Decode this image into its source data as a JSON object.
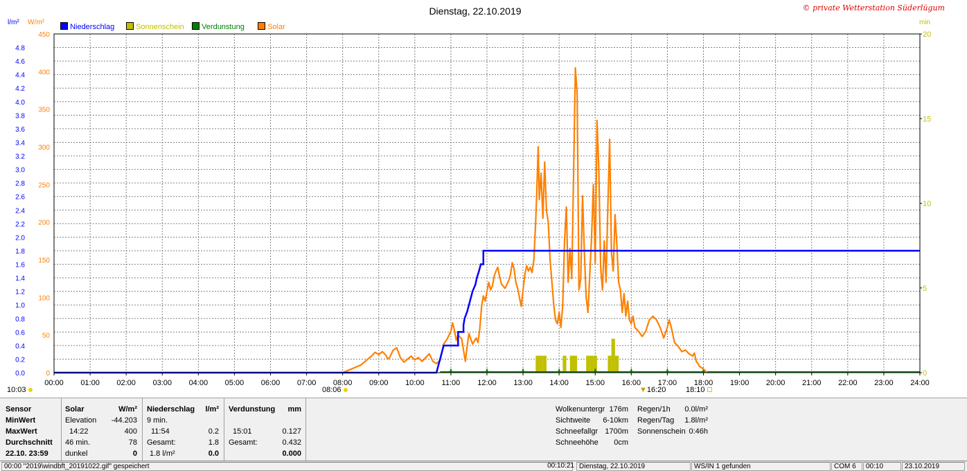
{
  "title": "Dienstag, 22.10.2019",
  "copyright": "© private Wetterstation Süderlügum",
  "units": {
    "left1": "l/m²",
    "left2": "W/m²",
    "right": "min"
  },
  "legend": [
    {
      "label": "Niederschlag",
      "color": "#0000ff"
    },
    {
      "label": "Sonnenschein",
      "color": "#c0c000"
    },
    {
      "label": "Verdunstung",
      "color": "#008000"
    },
    {
      "label": "Solar",
      "color": "#ff8000"
    }
  ],
  "markers": {
    "left_time": "10:03",
    "sunrise": "08:06",
    "noon": "16:20",
    "sunset": "18:10"
  },
  "chart_data": {
    "type": "line",
    "x_label_ticks": [
      "00:00",
      "01:00",
      "02:00",
      "03:00",
      "04:00",
      "05:00",
      "06:00",
      "07:00",
      "08:00",
      "09:00",
      "10:00",
      "11:00",
      "12:00",
      "13:00",
      "14:00",
      "15:00",
      "16:00",
      "17:00",
      "18:00",
      "19:00",
      "20:00",
      "21:00",
      "22:00",
      "23:00",
      "24:00"
    ],
    "xlim_hours": [
      0,
      24
    ],
    "y_left_precip_ticks": [
      "0.0",
      "0.2",
      "0.4",
      "0.6",
      "0.8",
      "1.0",
      "1.2",
      "1.4",
      "1.6",
      "1.8",
      "2.0",
      "2.2",
      "2.4",
      "2.6",
      "2.8",
      "3.0",
      "3.2",
      "3.4",
      "3.6",
      "3.8",
      "4.0",
      "4.2",
      "4.4",
      "4.6",
      "4.8"
    ],
    "ylim_precip": [
      0,
      5.0
    ],
    "y_left_solar_ticks": [
      "0",
      "50",
      "100",
      "150",
      "200",
      "250",
      "300",
      "350",
      "400",
      "450"
    ],
    "ylim_solar": [
      0,
      450
    ],
    "y_right_ticks": [
      "0",
      "5",
      "10",
      "15",
      "20"
    ],
    "ylim_sunshine_min": [
      0,
      20
    ],
    "grid": true,
    "series": [
      {
        "name": "Niederschlag",
        "color": "#0000ff",
        "unit": "l/m²",
        "axis": "precip",
        "points": [
          [
            0,
            0
          ],
          [
            10.6,
            0
          ],
          [
            10.65,
            0.1
          ],
          [
            10.7,
            0.2
          ],
          [
            10.75,
            0.3
          ],
          [
            10.8,
            0.4
          ],
          [
            11.2,
            0.4
          ],
          [
            11.2,
            0.6
          ],
          [
            11.35,
            0.6
          ],
          [
            11.35,
            0.7
          ],
          [
            11.38,
            0.8
          ],
          [
            11.45,
            0.9
          ],
          [
            11.5,
            1.0
          ],
          [
            11.55,
            1.1
          ],
          [
            11.6,
            1.2
          ],
          [
            11.68,
            1.3
          ],
          [
            11.72,
            1.4
          ],
          [
            11.78,
            1.5
          ],
          [
            11.83,
            1.6
          ],
          [
            11.9,
            1.6
          ],
          [
            11.9,
            1.8
          ],
          [
            24,
            1.8
          ]
        ]
      },
      {
        "name": "Solar",
        "color": "#ff8000",
        "unit": "W/m²",
        "axis": "solar",
        "points": [
          [
            8.0,
            0
          ],
          [
            8.15,
            3
          ],
          [
            8.3,
            6
          ],
          [
            8.5,
            10
          ],
          [
            8.6,
            14
          ],
          [
            8.7,
            18
          ],
          [
            8.8,
            22
          ],
          [
            8.9,
            27
          ],
          [
            9.0,
            24
          ],
          [
            9.1,
            28
          ],
          [
            9.2,
            23
          ],
          [
            9.25,
            18
          ],
          [
            9.3,
            20
          ],
          [
            9.4,
            30
          ],
          [
            9.5,
            33
          ],
          [
            9.6,
            20
          ],
          [
            9.7,
            14
          ],
          [
            9.8,
            18
          ],
          [
            9.9,
            22
          ],
          [
            10.0,
            17
          ],
          [
            10.1,
            20
          ],
          [
            10.2,
            15
          ],
          [
            10.3,
            20
          ],
          [
            10.4,
            25
          ],
          [
            10.5,
            15
          ],
          [
            10.6,
            12
          ],
          [
            10.7,
            16
          ],
          [
            10.8,
            38
          ],
          [
            10.9,
            45
          ],
          [
            11.0,
            55
          ],
          [
            11.05,
            66
          ],
          [
            11.1,
            56
          ],
          [
            11.15,
            43
          ],
          [
            11.2,
            50
          ],
          [
            11.3,
            45
          ],
          [
            11.4,
            15
          ],
          [
            11.45,
            35
          ],
          [
            11.5,
            52
          ],
          [
            11.6,
            38
          ],
          [
            11.7,
            46
          ],
          [
            11.75,
            40
          ],
          [
            11.8,
            58
          ],
          [
            11.85,
            88
          ],
          [
            11.9,
            102
          ],
          [
            11.95,
            95
          ],
          [
            12.0,
            108
          ],
          [
            12.05,
            120
          ],
          [
            12.1,
            110
          ],
          [
            12.15,
            115
          ],
          [
            12.2,
            128
          ],
          [
            12.25,
            135
          ],
          [
            12.3,
            140
          ],
          [
            12.35,
            128
          ],
          [
            12.4,
            118
          ],
          [
            12.5,
            112
          ],
          [
            12.6,
            122
          ],
          [
            12.65,
            130
          ],
          [
            12.7,
            146
          ],
          [
            12.75,
            138
          ],
          [
            12.8,
            120
          ],
          [
            12.85,
            112
          ],
          [
            12.9,
            100
          ],
          [
            12.95,
            88
          ],
          [
            13.0,
            110
          ],
          [
            13.05,
            130
          ],
          [
            13.1,
            142
          ],
          [
            13.15,
            135
          ],
          [
            13.2,
            140
          ],
          [
            13.25,
            133
          ],
          [
            13.3,
            150
          ],
          [
            13.35,
            200
          ],
          [
            13.38,
            240
          ],
          [
            13.42,
            300
          ],
          [
            13.45,
            230
          ],
          [
            13.5,
            265
          ],
          [
            13.55,
            205
          ],
          [
            13.6,
            280
          ],
          [
            13.65,
            215
          ],
          [
            13.7,
            200
          ],
          [
            13.75,
            150
          ],
          [
            13.8,
            120
          ],
          [
            13.85,
            90
          ],
          [
            13.9,
            70
          ],
          [
            13.95,
            65
          ],
          [
            14.0,
            80
          ],
          [
            14.05,
            60
          ],
          [
            14.1,
            90
          ],
          [
            14.15,
            175
          ],
          [
            14.2,
            220
          ],
          [
            14.25,
            120
          ],
          [
            14.3,
            165
          ],
          [
            14.35,
            125
          ],
          [
            14.4,
            260
          ],
          [
            14.45,
            405
          ],
          [
            14.5,
            370
          ],
          [
            14.55,
            110
          ],
          [
            14.6,
            125
          ],
          [
            14.65,
            235
          ],
          [
            14.7,
            160
          ],
          [
            14.75,
            100
          ],
          [
            14.8,
            80
          ],
          [
            14.85,
            130
          ],
          [
            14.9,
            180
          ],
          [
            14.95,
            250
          ],
          [
            15.0,
            145
          ],
          [
            15.05,
            335
          ],
          [
            15.1,
            270
          ],
          [
            15.15,
            140
          ],
          [
            15.2,
            110
          ],
          [
            15.25,
            175
          ],
          [
            15.3,
            120
          ],
          [
            15.35,
            220
          ],
          [
            15.4,
            310
          ],
          [
            15.45,
            160
          ],
          [
            15.5,
            135
          ],
          [
            15.55,
            210
          ],
          [
            15.6,
            170
          ],
          [
            15.65,
            120
          ],
          [
            15.7,
            110
          ],
          [
            15.75,
            80
          ],
          [
            15.8,
            105
          ],
          [
            15.85,
            75
          ],
          [
            15.9,
            95
          ],
          [
            15.95,
            70
          ],
          [
            16.0,
            65
          ],
          [
            16.05,
            75
          ],
          [
            16.1,
            60
          ],
          [
            16.2,
            55
          ],
          [
            16.3,
            48
          ],
          [
            16.4,
            55
          ],
          [
            16.5,
            70
          ],
          [
            16.6,
            75
          ],
          [
            16.7,
            70
          ],
          [
            16.8,
            60
          ],
          [
            16.9,
            46
          ],
          [
            17.0,
            60
          ],
          [
            17.05,
            70
          ],
          [
            17.1,
            62
          ],
          [
            17.2,
            40
          ],
          [
            17.3,
            35
          ],
          [
            17.4,
            28
          ],
          [
            17.5,
            30
          ],
          [
            17.6,
            25
          ],
          [
            17.7,
            22
          ],
          [
            17.75,
            26
          ],
          [
            17.8,
            15
          ],
          [
            17.85,
            12
          ],
          [
            17.9,
            8
          ],
          [
            18.0,
            5
          ],
          [
            18.1,
            0
          ]
        ]
      },
      {
        "name": "Sonnenschein",
        "color": "#c0c000",
        "unit": "min",
        "axis": "sunshine",
        "bars": [
          [
            13.35,
            1
          ],
          [
            13.45,
            1
          ],
          [
            13.55,
            1
          ],
          [
            14.1,
            1
          ],
          [
            14.3,
            1
          ],
          [
            14.4,
            1
          ],
          [
            14.75,
            1
          ],
          [
            14.85,
            1
          ],
          [
            14.95,
            1
          ],
          [
            15.35,
            1
          ],
          [
            15.45,
            2
          ],
          [
            15.55,
            1
          ]
        ]
      },
      {
        "name": "Verdunstung",
        "color": "#008000",
        "unit": "mm",
        "axis": "sunshine",
        "ticks": [
          11.0,
          12.0,
          13.0,
          14.0,
          15.0,
          16.0,
          17.0,
          18.0
        ],
        "baseline": true
      }
    ]
  },
  "panel": {
    "col0": {
      "header": "Sensor",
      "r1": "MinWert",
      "r2": "MaxWert",
      "r3": "Durchschnitt",
      "r4": "22.10. 23:59"
    },
    "solar": {
      "header": "Solar",
      "unit": "W/m²",
      "r1a": "Elevation",
      "r1b": "-44.203",
      "r2a": "14:22",
      "r2b": "400",
      "r3a": "46 min.",
      "r3b": "78",
      "r4a": "dunkel",
      "r4b": "0"
    },
    "precip": {
      "header": "Niederschlag",
      "unit": "l/m²",
      "r1a": "9 min.",
      "r1b": "",
      "r2a": "11:54",
      "r2b": "0.2",
      "r3a": "Gesamt:",
      "r3b": "1.8",
      "r4a": "1.8 l/m²",
      "r4b": "0.0"
    },
    "evap": {
      "header": "Verdunstung",
      "unit": "mm",
      "r1a": "",
      "r1b": "",
      "r2a": "15:01",
      "r2b": "0.127",
      "r3a": "Gesamt:",
      "r3b": "0.432",
      "r4a": "",
      "r4b": "0.000"
    },
    "weather": [
      {
        "label": "Wolkenuntergr",
        "value": "176m"
      },
      {
        "label": "Sichtweite",
        "value": "6-10km"
      },
      {
        "label": "Schneefallgr",
        "value": "1700m"
      },
      {
        "label": "Schneehöhe",
        "value": "0cm"
      }
    ],
    "rain": [
      {
        "label": "Regen/1h",
        "value": "0.0l/m²"
      },
      {
        "label": "Regen/Tag",
        "value": "1.8l/m²"
      },
      {
        "label": "Sonnenschein",
        "value": "0:46h"
      }
    ]
  },
  "statusbar": {
    "s1": "00:00   \"2019\\windbft_20191022.gif\"  gespeichert",
    "s2": "00:10:21",
    "s3": "Dienstag, 22.10.2019",
    "s4": "WS/IN 1 gefunden",
    "s5": "COM 6",
    "s6": "00:10",
    "s7": "23.10.2019"
  }
}
